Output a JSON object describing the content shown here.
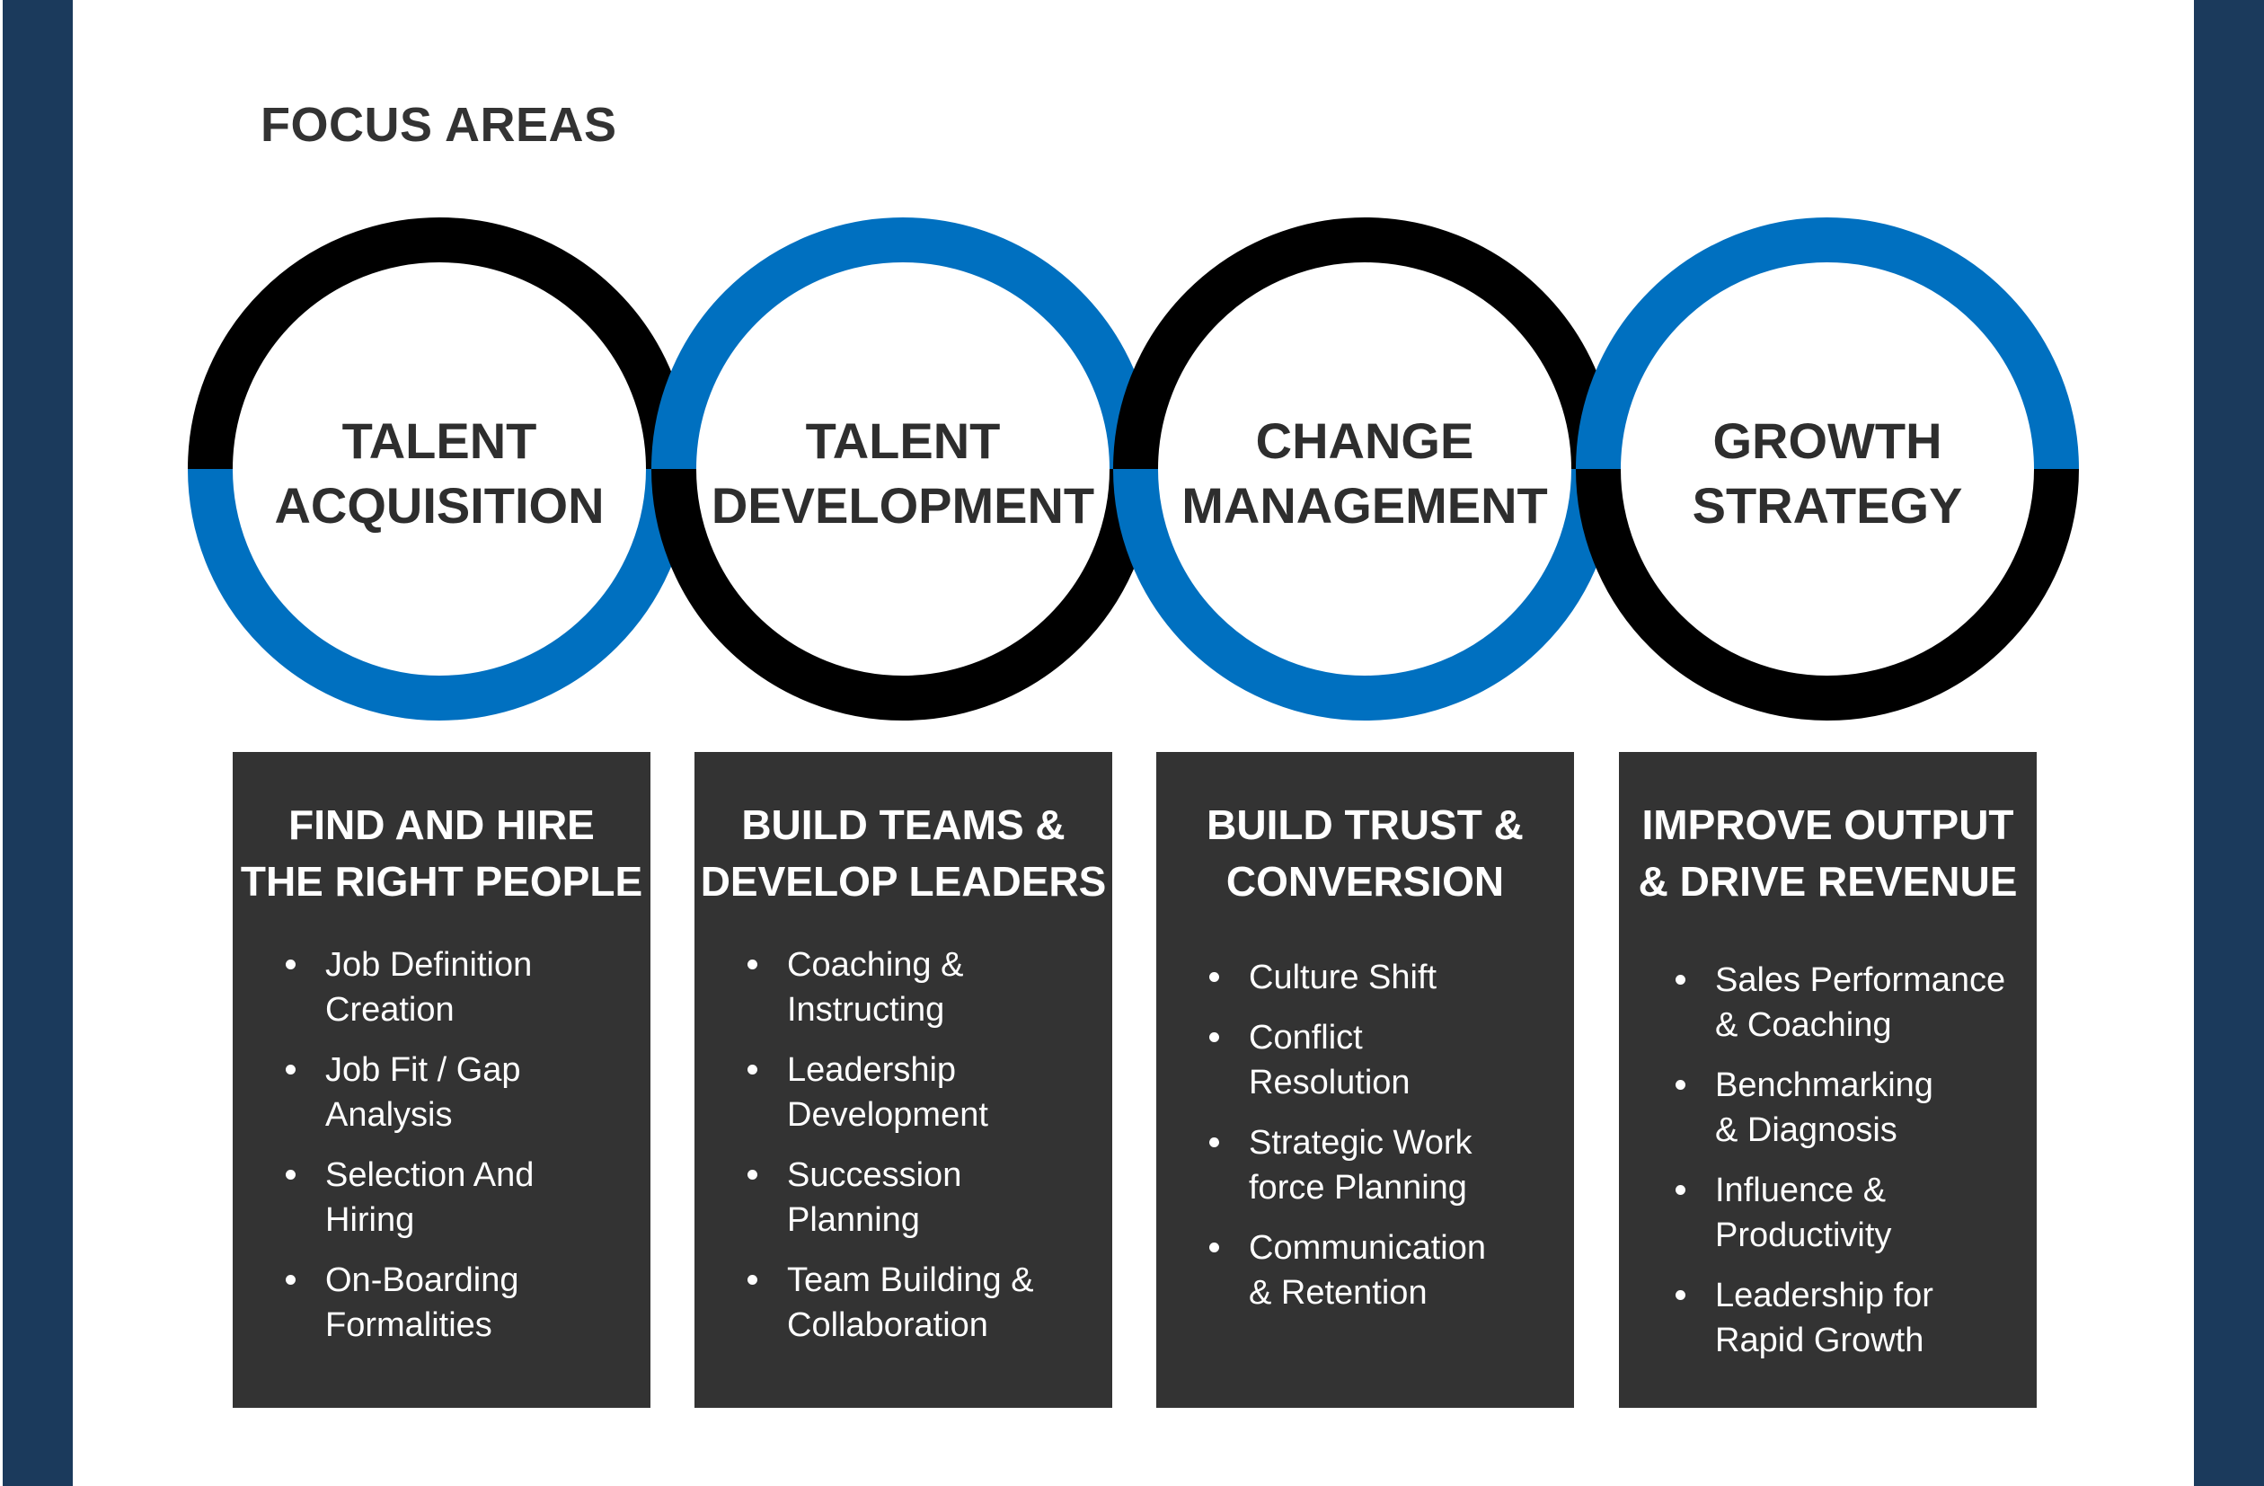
{
  "page_title": "FOCUS AREAS",
  "colors": {
    "black_ring": "#000000",
    "blue_ring": "#0070c0",
    "card_background": "#333333",
    "side_bar": "#1b3a5c"
  },
  "circles": [
    {
      "line1": "TALENT",
      "line2": "ACQUISITION"
    },
    {
      "line1": "TALENT",
      "line2": "DEVELOPMENT"
    },
    {
      "line1": "CHANGE",
      "line2": "MANAGEMENT"
    },
    {
      "line1": "GROWTH",
      "line2": "STRATEGY"
    }
  ],
  "cards": [
    {
      "title_line1": "FIND AND HIRE",
      "title_line2": "THE RIGHT PEOPLE",
      "items": [
        {
          "line1": "Job Definition",
          "line2": "Creation"
        },
        {
          "line1": "Job Fit / Gap",
          "line2": "Analysis"
        },
        {
          "line1": "Selection And",
          "line2": "Hiring"
        },
        {
          "line1": "On-Boarding",
          "line2": "Formalities"
        }
      ]
    },
    {
      "title_line1": "BUILD TEAMS &",
      "title_line2": "DEVELOP LEADERS",
      "items": [
        {
          "line1": "Coaching &",
          "line2": "Instructing"
        },
        {
          "line1": "Leadership",
          "line2": "Development"
        },
        {
          "line1": "Succession",
          "line2": "Planning"
        },
        {
          "line1": "Team Building &",
          "line2": "Collaboration"
        }
      ]
    },
    {
      "title_line1": "BUILD TRUST &",
      "title_line2": "CONVERSION",
      "items": [
        {
          "line1": "Culture Shift",
          "line2": ""
        },
        {
          "line1": "Conflict",
          "line2": "Resolution"
        },
        {
          "line1": "Strategic Work",
          "line2": "force Planning"
        },
        {
          "line1": "Communication",
          "line2": "& Retention"
        }
      ]
    },
    {
      "title_line1": "IMPROVE OUTPUT",
      "title_line2": "& DRIVE REVENUE",
      "items": [
        {
          "line1": "Sales Performance",
          "line2": "& Coaching"
        },
        {
          "line1": "Benchmarking",
          "line2": "& Diagnosis"
        },
        {
          "line1": "Influence &",
          "line2": "Productivity"
        },
        {
          "line1": "Leadership for",
          "line2": "Rapid Growth"
        }
      ]
    }
  ]
}
